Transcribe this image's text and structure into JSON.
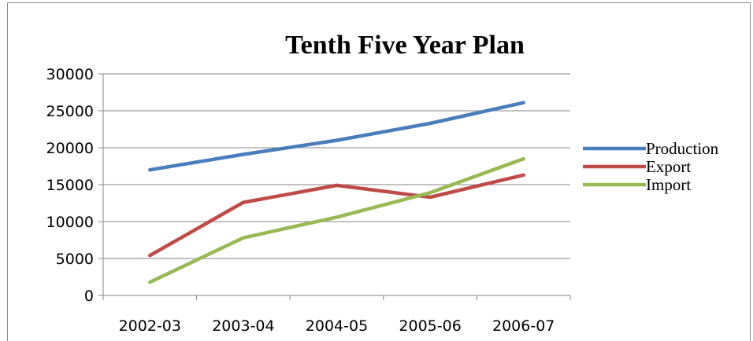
{
  "chart_data": {
    "type": "line",
    "title": "Tenth Five Year Plan",
    "categories": [
      "2002-03",
      "2003-04",
      "2004-05",
      "2005-06",
      "2006-07"
    ],
    "ylim": [
      0,
      30000
    ],
    "yticks": [
      0,
      5000,
      10000,
      15000,
      20000,
      25000,
      30000
    ],
    "grid": true,
    "legend_position": "right",
    "series": [
      {
        "name": "Production",
        "color": "#4a7ebb",
        "values": [
          17000,
          19100,
          21000,
          23300,
          26100
        ]
      },
      {
        "name": "Export",
        "color": "#be4b48",
        "values": [
          5400,
          12600,
          14900,
          13300,
          16300
        ]
      },
      {
        "name": "Import",
        "color": "#98b954",
        "values": [
          1800,
          7800,
          10600,
          13900,
          18500
        ]
      }
    ]
  }
}
